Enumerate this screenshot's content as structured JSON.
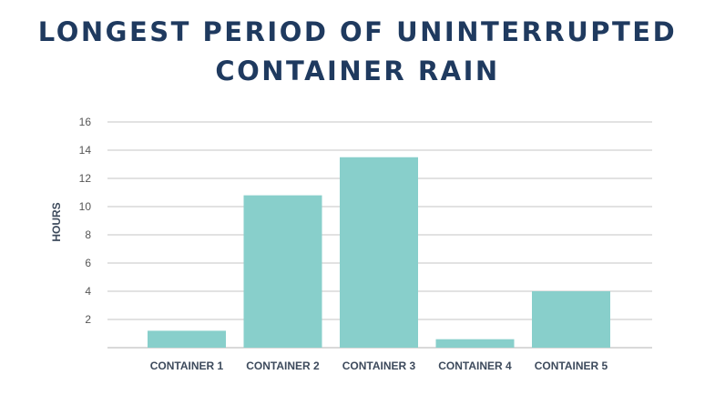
{
  "chart_data": {
    "type": "bar",
    "title_lines": [
      "LONGEST PERIOD OF UNINTERRUPTED",
      "CONTAINER RAIN"
    ],
    "xlabel": "",
    "ylabel": "HOURS",
    "categories": [
      "CONTAINER 1",
      "CONTAINER 2",
      "CONTAINER 3",
      "CONTAINER 4",
      "CONTAINER 5"
    ],
    "values": [
      1.2,
      10.8,
      13.5,
      0.6,
      4.0
    ],
    "ylim": [
      0,
      16
    ],
    "yticks": [
      2,
      4,
      6,
      8,
      10,
      12,
      14,
      16
    ],
    "ytick_labels": [
      "2",
      "4",
      "6",
      "8",
      "10",
      "12",
      "14",
      "16"
    ],
    "grid": true,
    "legend": "none",
    "colors": {
      "bar": "#88cfcb",
      "grid": "#d9d9d9",
      "title": "#1f3a5f"
    }
  }
}
